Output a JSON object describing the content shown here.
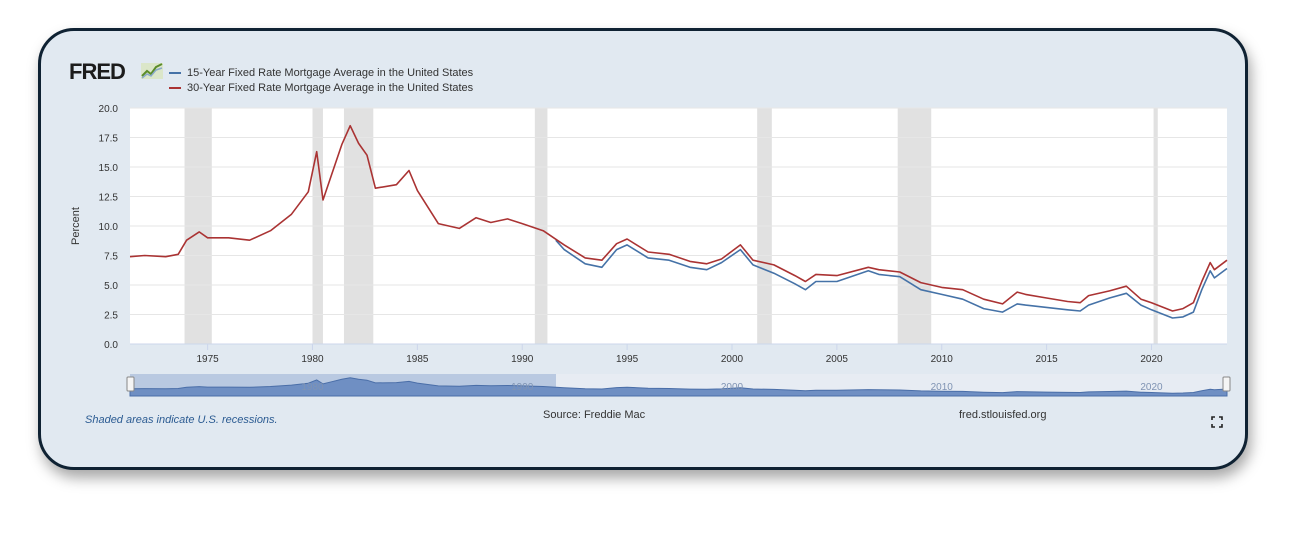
{
  "brand": "FRED",
  "legend": [
    {
      "name": "15-Year Fixed Rate Mortgage Average in the United States",
      "color": "#4572a7"
    },
    {
      "name": "30-Year Fixed Rate Mortgage Average in the United States",
      "color": "#aa3333"
    }
  ],
  "footer": {
    "note": "Shaded areas indicate U.S. recessions.",
    "source": "Source: Freddie Mac",
    "site": "fred.stlouisfed.org"
  },
  "navigator": {
    "labels": [
      "1980",
      "1990",
      "2000",
      "2010",
      "2020"
    ]
  },
  "chart_data": {
    "type": "line",
    "ylabel": "Percent",
    "xlim": [
      1971.3,
      2023.6
    ],
    "ylim": [
      0,
      20
    ],
    "y_ticks": [
      0.0,
      2.5,
      5.0,
      7.5,
      10.0,
      12.5,
      15.0,
      17.5,
      20.0
    ],
    "x_ticks": [
      1975,
      1980,
      1985,
      1990,
      1995,
      2000,
      2005,
      2010,
      2015,
      2020
    ],
    "grid": true,
    "legend_position": "top-left",
    "recessions": [
      [
        1973.9,
        1975.2
      ],
      [
        1980.0,
        1980.5
      ],
      [
        1981.5,
        1982.9
      ],
      [
        1990.6,
        1991.2
      ],
      [
        2001.2,
        2001.9
      ],
      [
        2007.9,
        2009.5
      ],
      [
        2020.1,
        2020.3
      ]
    ],
    "series": [
      {
        "name": "30-Year Fixed Rate Mortgage Average in the United States",
        "color": "#aa3333",
        "x": [
          1971.3,
          1972.0,
          1973.0,
          1973.6,
          1974.0,
          1974.6,
          1975.0,
          1976.0,
          1977.0,
          1978.0,
          1979.0,
          1979.8,
          1980.2,
          1980.5,
          1980.9,
          1981.4,
          1981.8,
          1982.2,
          1982.6,
          1983.0,
          1984.0,
          1984.6,
          1985.0,
          1986.0,
          1987.0,
          1987.8,
          1988.5,
          1989.3,
          1990.0,
          1991.0,
          1992.0,
          1993.0,
          1993.8,
          1994.5,
          1995.0,
          1996.0,
          1997.0,
          1998.0,
          1998.8,
          1999.5,
          2000.4,
          2001.0,
          2002.0,
          2003.0,
          2003.5,
          2004.0,
          2005.0,
          2006.5,
          2007.0,
          2008.0,
          2009.0,
          2010.0,
          2011.0,
          2012.0,
          2012.9,
          2013.6,
          2014.0,
          2015.0,
          2016.0,
          2016.6,
          2017.0,
          2018.0,
          2018.8,
          2019.5,
          2020.0,
          2021.0,
          2021.5,
          2022.0,
          2022.4,
          2022.8,
          2023.0,
          2023.6
        ],
        "values": [
          7.4,
          7.5,
          7.4,
          7.6,
          8.8,
          9.5,
          9.0,
          9.0,
          8.8,
          9.6,
          11.0,
          12.9,
          16.3,
          12.2,
          14.3,
          16.9,
          18.5,
          17.0,
          16.0,
          13.2,
          13.5,
          14.7,
          13.0,
          10.2,
          9.8,
          10.7,
          10.3,
          10.6,
          10.2,
          9.6,
          8.4,
          7.3,
          7.1,
          8.5,
          8.9,
          7.8,
          7.6,
          7.0,
          6.8,
          7.2,
          8.4,
          7.1,
          6.7,
          5.8,
          5.3,
          5.9,
          5.8,
          6.5,
          6.3,
          6.1,
          5.2,
          4.8,
          4.6,
          3.8,
          3.4,
          4.4,
          4.2,
          3.9,
          3.6,
          3.5,
          4.1,
          4.5,
          4.9,
          3.8,
          3.5,
          2.8,
          3.0,
          3.5,
          5.3,
          6.9,
          6.3,
          7.1
        ]
      },
      {
        "name": "15-Year Fixed Rate Mortgage Average in the United States",
        "color": "#4572a7",
        "x": [
          1991.6,
          1992.0,
          1993.0,
          1993.8,
          1994.5,
          1995.0,
          1996.0,
          1997.0,
          1998.0,
          1998.8,
          1999.5,
          2000.4,
          2001.0,
          2002.0,
          2003.0,
          2003.5,
          2004.0,
          2005.0,
          2006.5,
          2007.0,
          2008.0,
          2009.0,
          2010.0,
          2011.0,
          2012.0,
          2012.9,
          2013.6,
          2014.0,
          2015.0,
          2016.0,
          2016.6,
          2017.0,
          2018.0,
          2018.8,
          2019.5,
          2020.0,
          2021.0,
          2021.5,
          2022.0,
          2022.4,
          2022.8,
          2023.0,
          2023.6
        ],
        "values": [
          8.8,
          8.0,
          6.8,
          6.5,
          8.0,
          8.4,
          7.3,
          7.1,
          6.5,
          6.3,
          6.9,
          8.0,
          6.7,
          6.0,
          5.1,
          4.6,
          5.3,
          5.3,
          6.2,
          5.9,
          5.7,
          4.6,
          4.2,
          3.8,
          3.0,
          2.7,
          3.4,
          3.3,
          3.1,
          2.9,
          2.8,
          3.3,
          3.9,
          4.3,
          3.3,
          2.9,
          2.2,
          2.3,
          2.7,
          4.6,
          6.2,
          5.6,
          6.4
        ]
      }
    ]
  }
}
